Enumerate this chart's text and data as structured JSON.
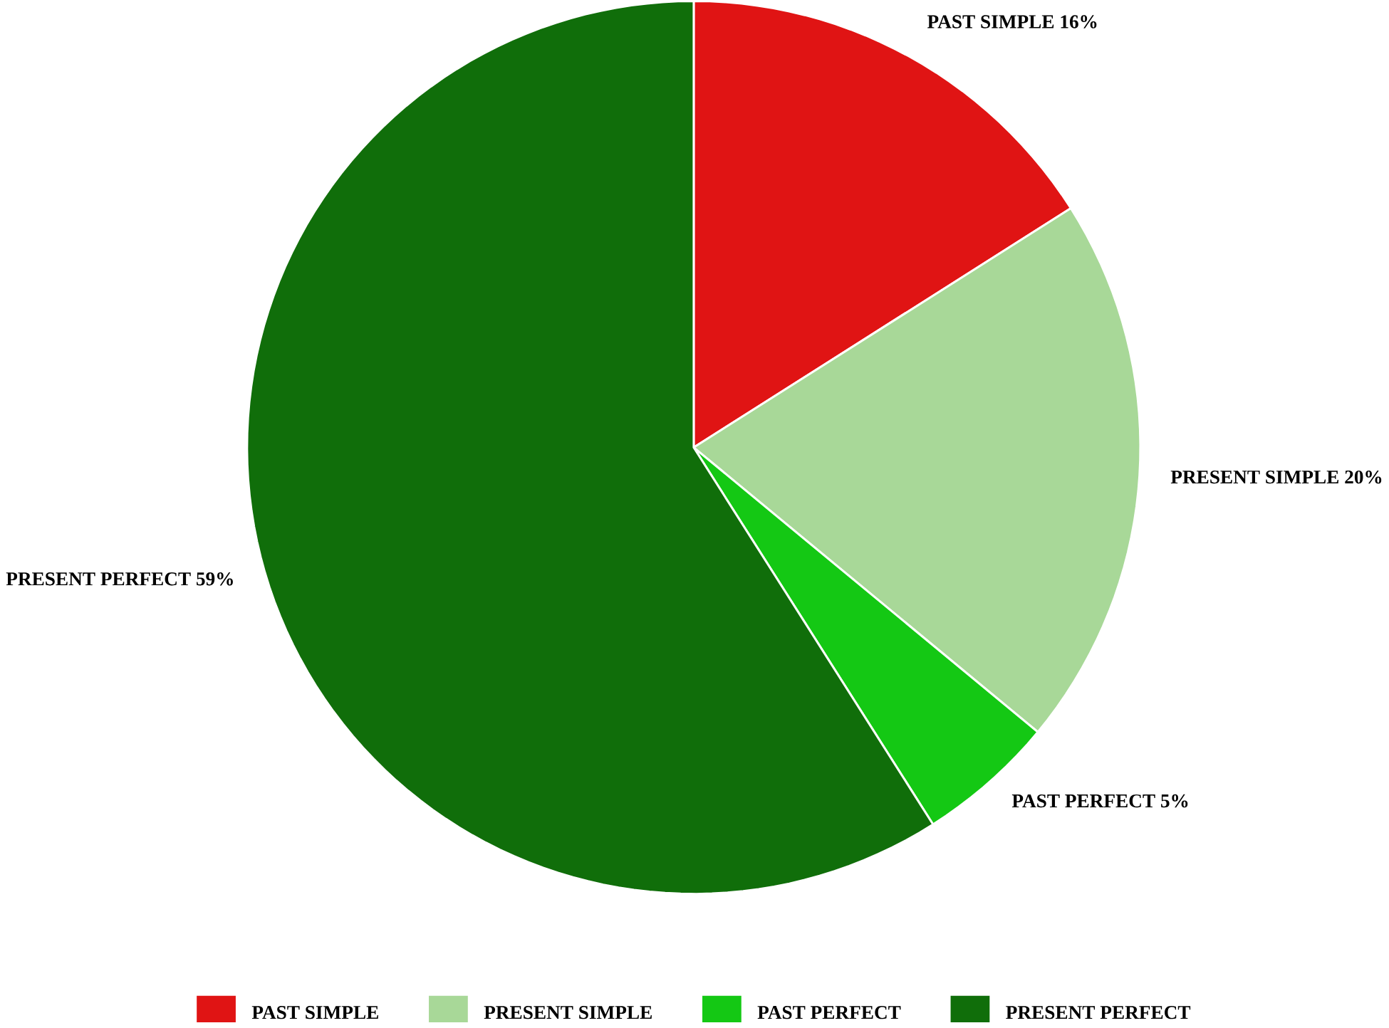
{
  "chart_data": {
    "type": "pie",
    "categories": [
      "PAST SIMPLE",
      "PRESENT SIMPLE",
      "PAST PERFECT",
      "PRESENT PERFECT"
    ],
    "values": [
      16,
      20,
      5,
      59
    ],
    "colors": [
      "#e01414",
      "#a8d898",
      "#14c814",
      "#106e0a"
    ],
    "value_labels": [
      "PAST SIMPLE 16%",
      "PRESENT SIMPLE 20%",
      "PAST PERFECT 5%",
      "PRESENT PERFECT 59%"
    ],
    "legend": "bottom"
  }
}
